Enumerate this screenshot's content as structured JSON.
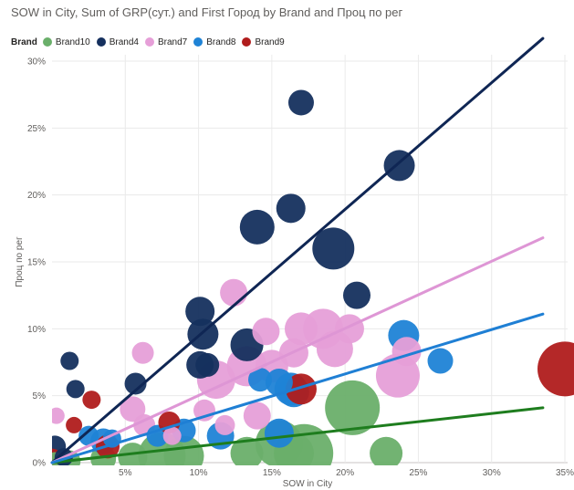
{
  "chart_data": {
    "type": "scatter",
    "title": "SOW in City, Sum of GRP(сут.) and First Город by Brand and Проц по рег",
    "xlabel": "SOW in City",
    "ylabel": "Проц по рег",
    "legend_title": "Brand",
    "legend_position": "top-left",
    "grid": true,
    "xlim": [
      0,
      0.35
    ],
    "ylim": [
      0,
      0.3
    ],
    "xticks": [
      {
        "v": 0.05,
        "label": "5%"
      },
      {
        "v": 0.1,
        "label": "10%"
      },
      {
        "v": 0.15,
        "label": "15%"
      },
      {
        "v": 0.2,
        "label": "20%"
      },
      {
        "v": 0.25,
        "label": "25%"
      },
      {
        "v": 0.3,
        "label": "30%"
      },
      {
        "v": 0.35,
        "label": "35%"
      }
    ],
    "yticks": [
      {
        "v": 0.0,
        "label": "0%"
      },
      {
        "v": 0.05,
        "label": "5%"
      },
      {
        "v": 0.1,
        "label": "10%"
      },
      {
        "v": 0.15,
        "label": "15%"
      },
      {
        "v": 0.2,
        "label": "20%"
      },
      {
        "v": 0.25,
        "label": "25%"
      },
      {
        "v": 0.3,
        "label": "30%"
      }
    ],
    "series": [
      {
        "name": "Brand10",
        "color": "#6aaf6a",
        "trend_color": "#1e7d1e",
        "trend": [
          [
            0.0,
            0.0
          ],
          [
            0.335,
            0.041
          ]
        ],
        "points": [
          {
            "x": 0.205,
            "y": 0.041,
            "size": 30
          },
          {
            "x": 0.228,
            "y": 0.007,
            "size": 18
          },
          {
            "x": 0.172,
            "y": 0.007,
            "size": 32
          },
          {
            "x": 0.155,
            "y": 0.014,
            "size": 26
          },
          {
            "x": 0.165,
            "y": 0.007,
            "size": 22
          },
          {
            "x": 0.133,
            "y": 0.007,
            "size": 18
          },
          {
            "x": 0.09,
            "y": 0.005,
            "size": 22
          },
          {
            "x": 0.075,
            "y": 0.005,
            "size": 26
          },
          {
            "x": 0.055,
            "y": 0.004,
            "size": 16
          },
          {
            "x": 0.035,
            "y": 0.003,
            "size": 14
          },
          {
            "x": 0.012,
            "y": 0.001,
            "size": 12
          },
          {
            "x": 0.002,
            "y": 0.001,
            "size": 10
          }
        ]
      },
      {
        "name": "Brand4",
        "color": "#15305e",
        "trend_color": "#0f2654",
        "trend": [
          [
            0.0,
            0.0
          ],
          [
            0.335,
            0.317
          ]
        ],
        "points": [
          {
            "x": 0.17,
            "y": 0.269,
            "size": 14
          },
          {
            "x": 0.237,
            "y": 0.222,
            "size": 17
          },
          {
            "x": 0.163,
            "y": 0.19,
            "size": 16
          },
          {
            "x": 0.14,
            "y": 0.176,
            "size": 19
          },
          {
            "x": 0.192,
            "y": 0.16,
            "size": 23
          },
          {
            "x": 0.208,
            "y": 0.125,
            "size": 15
          },
          {
            "x": 0.101,
            "y": 0.113,
            "size": 16
          },
          {
            "x": 0.103,
            "y": 0.096,
            "size": 17
          },
          {
            "x": 0.133,
            "y": 0.088,
            "size": 18
          },
          {
            "x": 0.101,
            "y": 0.073,
            "size": 15
          },
          {
            "x": 0.106,
            "y": 0.073,
            "size": 13
          },
          {
            "x": 0.057,
            "y": 0.059,
            "size": 12
          },
          {
            "x": 0.012,
            "y": 0.076,
            "size": 10
          },
          {
            "x": 0.016,
            "y": 0.055,
            "size": 10
          },
          {
            "x": 0.002,
            "y": 0.012,
            "size": 12
          },
          {
            "x": 0.008,
            "y": 0.004,
            "size": 10
          }
        ]
      },
      {
        "name": "Brand7",
        "color": "#e69fd8",
        "trend_color": "#de96d5",
        "trend": [
          [
            0.0,
            0.0
          ],
          [
            0.335,
            0.168
          ]
        ],
        "points": [
          {
            "x": 0.124,
            "y": 0.127,
            "size": 15
          },
          {
            "x": 0.185,
            "y": 0.1,
            "size": 22
          },
          {
            "x": 0.17,
            "y": 0.1,
            "size": 18
          },
          {
            "x": 0.203,
            "y": 0.1,
            "size": 16
          },
          {
            "x": 0.146,
            "y": 0.098,
            "size": 15
          },
          {
            "x": 0.193,
            "y": 0.085,
            "size": 20
          },
          {
            "x": 0.165,
            "y": 0.082,
            "size": 16
          },
          {
            "x": 0.242,
            "y": 0.083,
            "size": 16
          },
          {
            "x": 0.236,
            "y": 0.065,
            "size": 24
          },
          {
            "x": 0.15,
            "y": 0.072,
            "size": 18
          },
          {
            "x": 0.133,
            "y": 0.072,
            "size": 22
          },
          {
            "x": 0.112,
            "y": 0.062,
            "size": 21
          },
          {
            "x": 0.062,
            "y": 0.082,
            "size": 12
          },
          {
            "x": 0.055,
            "y": 0.04,
            "size": 14
          },
          {
            "x": 0.104,
            "y": 0.039,
            "size": 12
          },
          {
            "x": 0.14,
            "y": 0.035,
            "size": 15
          },
          {
            "x": 0.063,
            "y": 0.028,
            "size": 12
          },
          {
            "x": 0.118,
            "y": 0.028,
            "size": 11
          },
          {
            "x": 0.003,
            "y": 0.035,
            "size": 9
          },
          {
            "x": 0.082,
            "y": 0.02,
            "size": 10
          }
        ]
      },
      {
        "name": "Brand8",
        "color": "#1f83d6",
        "trend_color": "#1f7fd4",
        "trend": [
          [
            0.0,
            0.0
          ],
          [
            0.335,
            0.111
          ]
        ],
        "points": [
          {
            "x": 0.24,
            "y": 0.095,
            "size": 17
          },
          {
            "x": 0.265,
            "y": 0.076,
            "size": 14
          },
          {
            "x": 0.142,
            "y": 0.062,
            "size": 13
          },
          {
            "x": 0.155,
            "y": 0.06,
            "size": 15
          },
          {
            "x": 0.163,
            "y": 0.055,
            "size": 18
          },
          {
            "x": 0.165,
            "y": 0.053,
            "size": 17
          },
          {
            "x": 0.155,
            "y": 0.022,
            "size": 16
          },
          {
            "x": 0.115,
            "y": 0.02,
            "size": 15
          },
          {
            "x": 0.09,
            "y": 0.024,
            "size": 13
          },
          {
            "x": 0.072,
            "y": 0.02,
            "size": 12
          },
          {
            "x": 0.035,
            "y": 0.016,
            "size": 14
          },
          {
            "x": 0.025,
            "y": 0.02,
            "size": 11
          },
          {
            "x": 0.041,
            "y": 0.018,
            "size": 10
          }
        ]
      },
      {
        "name": "Brand9",
        "color": "#b01c1c",
        "trend": [],
        "points": [
          {
            "x": 0.35,
            "y": 0.07,
            "size": 30
          },
          {
            "x": 0.17,
            "y": 0.055,
            "size": 17
          },
          {
            "x": 0.027,
            "y": 0.047,
            "size": 10
          },
          {
            "x": 0.015,
            "y": 0.028,
            "size": 9
          },
          {
            "x": 0.08,
            "y": 0.03,
            "size": 12
          },
          {
            "x": 0.038,
            "y": 0.012,
            "size": 13
          },
          {
            "x": 0.0,
            "y": 0.003,
            "size": 11
          }
        ]
      }
    ]
  }
}
